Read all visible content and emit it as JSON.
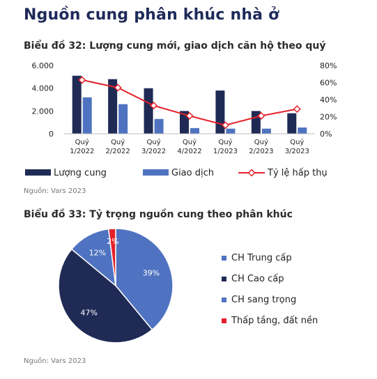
{
  "page_title": "Nguồn cung phân khúc nhà ở",
  "source_note": "Nguồn: Vars 2023",
  "colors": {
    "dark_navy": "#1f2b55",
    "blue": "#4f73c0",
    "red": "#e3212b",
    "title": "#1e2a5a"
  },
  "chart_data": [
    {
      "type": "bar",
      "title": "Biểu đồ 32: Lượng cung mới, giao dịch căn hộ theo quý",
      "categories": [
        "Quý 1/2022",
        "Quý 2/2022",
        "Quý 3/2022",
        "Quý 4/2022",
        "Quý 1/2023",
        "Quý 2/2023",
        "Quý 3/2023"
      ],
      "category_lines": [
        [
          "Quý",
          "1/2022"
        ],
        [
          "Quý",
          "2/2022"
        ],
        [
          "Quý",
          "3/2022"
        ],
        [
          "Quý",
          "4/2022"
        ],
        [
          "Quý",
          "1/2023"
        ],
        [
          "Quý",
          "2/2023"
        ],
        [
          "Quý",
          "3/2023"
        ]
      ],
      "series": [
        {
          "name": "Lượng cung",
          "kind": "bar",
          "axis": "left",
          "color": "#1f2b55",
          "values": [
            5100,
            4800,
            4000,
            2000,
            3800,
            2000,
            1800
          ]
        },
        {
          "name": "Giao dịch",
          "kind": "bar",
          "axis": "left",
          "color": "#4f73c0",
          "values": [
            3200,
            2600,
            1300,
            500,
            450,
            450,
            550
          ]
        },
        {
          "name": "Tỷ lệ hấp thụ",
          "kind": "line",
          "axis": "right",
          "color": "#e3212b",
          "values": [
            63,
            54,
            33,
            21,
            10,
            21,
            29
          ]
        }
      ],
      "left_axis": {
        "ylim": [
          0,
          6000
        ],
        "ticks": [
          0,
          2000,
          4000,
          6000
        ],
        "tick_labels": [
          "0",
          "2.000",
          "4.000",
          "6.000"
        ]
      },
      "right_axis": {
        "ylim": [
          0,
          80
        ],
        "ticks": [
          0,
          20,
          40,
          60,
          80
        ],
        "tick_labels": [
          "0%",
          "20%",
          "40%",
          "60%",
          "80%"
        ]
      },
      "legend": {
        "position": "bottom",
        "items": [
          "Lượng cung",
          "Giao dịch",
          "Tỷ lệ hấp thụ"
        ]
      },
      "grid": false
    },
    {
      "type": "pie",
      "title": "Biểu đồ 33: Tỷ trọng nguồn cung theo phân khúc",
      "slices": [
        {
          "label": "CH Trung cấp",
          "value": 39,
          "display": "39%",
          "color": "#4f73c0"
        },
        {
          "label": "CH Cao cấp",
          "value": 47,
          "display": "47%",
          "color": "#1f2b55"
        },
        {
          "label": "CH sang trọng",
          "value": 12,
          "display": "12%",
          "color": "#4f73c0"
        },
        {
          "label": "Thấp tầng, đất nền",
          "value": 2,
          "display": "2%",
          "color": "#e3212b"
        }
      ],
      "legend": {
        "position": "right"
      }
    }
  ]
}
